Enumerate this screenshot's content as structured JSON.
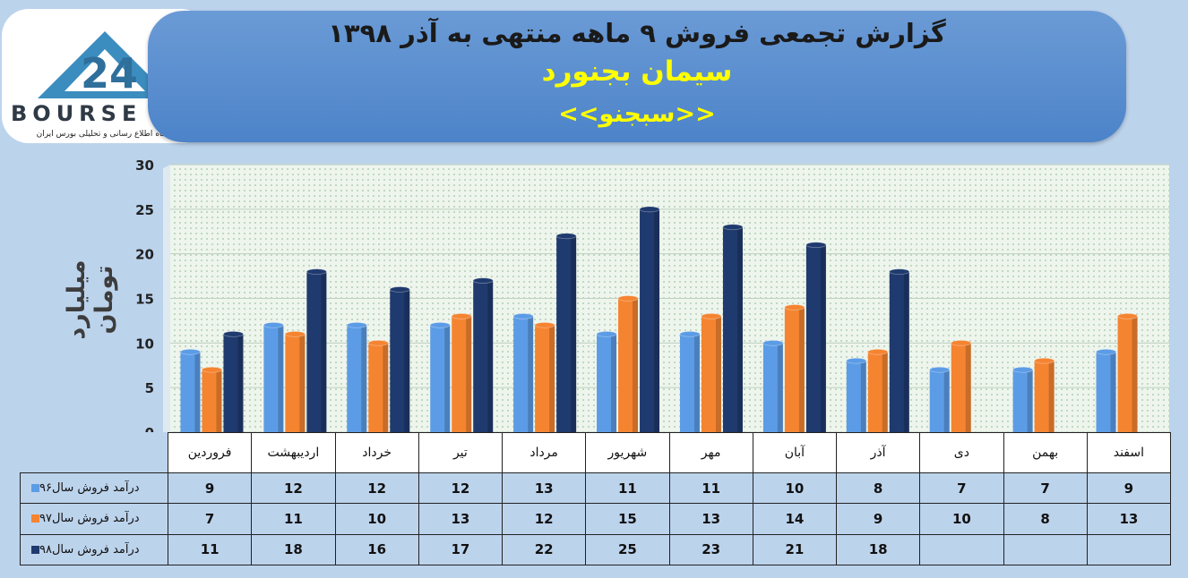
{
  "header": {
    "title": "گزارش تجمعی فروش ۹ ماهه منتهی به آذر ۱۳۹۸",
    "company": "سیمان بجنورد",
    "symbol": "<<سبجنو>>"
  },
  "logo": {
    "name": "BOURSE",
    "subtitle": "پایگاه اطلاع رسانی و تحلیلی بورس ایران"
  },
  "colors": {
    "s96": "#5c9ce6",
    "s97": "#f58431",
    "s98": "#1f3a6e"
  },
  "chart_data": {
    "type": "bar",
    "categories": [
      "فروردین",
      "اردیبهشت",
      "خرداد",
      "تیر",
      "مرداد",
      "شهریور",
      "مهر",
      "آبان",
      "آذر",
      "دی",
      "بهمن",
      "اسفند"
    ],
    "series": [
      {
        "name": "درآمد فروش سال۹۶",
        "values": [
          9,
          12,
          12,
          12,
          13,
          11,
          11,
          10,
          8,
          7,
          7,
          9
        ]
      },
      {
        "name": "درآمد فروش سال۹۷",
        "values": [
          7,
          11,
          10,
          13,
          12,
          15,
          13,
          14,
          9,
          10,
          8,
          13
        ]
      },
      {
        "name": "درآمد فروش سال۹۸",
        "values": [
          11,
          18,
          16,
          17,
          22,
          25,
          23,
          21,
          18,
          null,
          null,
          null
        ]
      }
    ],
    "ylabel": "میلیارد تومان",
    "ylim": [
      0,
      30
    ],
    "yticks": [
      0,
      5,
      10,
      15,
      20,
      25,
      30
    ],
    "grid": true,
    "legend": "table"
  }
}
